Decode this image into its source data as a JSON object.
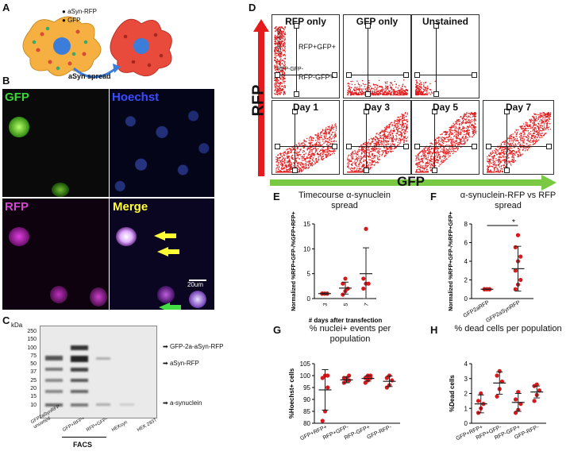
{
  "panels": {
    "A": "A",
    "B": "B",
    "C": "C",
    "D": "D",
    "E": "E",
    "F": "F",
    "G": "G",
    "H": "H"
  },
  "panelA": {
    "legend_rfp": "aSyn-RFP",
    "legend_gfp": "GFP",
    "arrow_label": "aSyn spread"
  },
  "panelB": {
    "gfp": "GFP",
    "hoechst": "Hoechst",
    "rfp": "RFP",
    "merge": "Merge",
    "scale": "20um"
  },
  "panelC": {
    "unit": "kDa",
    "markers": [
      "250",
      "150",
      "100",
      "75",
      "50",
      "37",
      "25",
      "20",
      "15",
      "10"
    ],
    "lanes": [
      "GFP2aSynRFP unsorted",
      "GFP+RFP+",
      "RFP+GFP-",
      "HEKsyn",
      "HEK 293T"
    ],
    "facs": "FACS",
    "bands": [
      "GFP-2a-aSyn-RFP",
      "aSyn-RFP",
      "a-synuclein"
    ]
  },
  "panelD": {
    "top": [
      "RFP only",
      "GFP only",
      "Unstained"
    ],
    "bottom": [
      "Day 1",
      "Day 3",
      "Day 5",
      "Day 7"
    ],
    "quadrants": {
      "ul": "RFP+GFP-",
      "ur": "RFP+GFP+",
      "ll": "RFP-GFP-",
      "lr": "RFP-GFP+"
    },
    "yaxis": "RFP",
    "xaxis": "GFP",
    "colors": {
      "red": "#e41a1c",
      "green": "#7ac943"
    }
  },
  "chart_data": [
    {
      "id": "E",
      "type": "scatter",
      "title": "Timecourse α-synuclein spread",
      "ylabel": "Normalized %RFP+GFP-/%GFP+RFP+",
      "xlabel": "# days after transfection",
      "categories": [
        "3",
        "5",
        "7"
      ],
      "ylim": [
        0,
        15
      ],
      "yticks": [
        0,
        5,
        10,
        15
      ],
      "points": [
        [
          1,
          1,
          1,
          1,
          1,
          1
        ],
        [
          0.8,
          1.5,
          2,
          3,
          4
        ],
        [
          2,
          3,
          3,
          4,
          14
        ]
      ],
      "mean": [
        1,
        2.1,
        5
      ],
      "sd": [
        0.1,
        1.2,
        5.2
      ]
    },
    {
      "id": "F",
      "type": "scatter",
      "title": "α-synuclein-RFP vs RFP spread",
      "ylabel": "Normalized %RFP+GFP-/%RFP+GFP+",
      "categories": [
        "GFP2aRFP",
        "GFP2aSynRFP"
      ],
      "ylim": [
        0,
        8
      ],
      "yticks": [
        0,
        2,
        4,
        6,
        8
      ],
      "points": [
        [
          1,
          1,
          1,
          1,
          1,
          1,
          1
        ],
        [
          1,
          1.5,
          2,
          3,
          4,
          4.5,
          5.5,
          6.8
        ]
      ],
      "mean": [
        1,
        3.2
      ],
      "sd": [
        0,
        2.4
      ],
      "significance": "*"
    },
    {
      "id": "G",
      "type": "scatter",
      "title": "% nuclei+ events per population",
      "ylabel": "%Hoechst+ cells",
      "categories": [
        "GFP+RFP+",
        "RFP+GFP-",
        "RFP-GFP+",
        "GFP-RFP-"
      ],
      "ylim": [
        80,
        105
      ],
      "yticks": [
        80,
        85,
        90,
        95,
        100,
        105
      ],
      "points": [
        [
          81,
          85,
          95,
          99,
          100,
          100
        ],
        [
          97,
          98,
          98,
          99,
          99,
          100
        ],
        [
          97,
          98,
          99,
          99,
          100,
          100
        ],
        [
          95,
          96,
          98,
          99,
          100
        ]
      ],
      "mean": [
        94,
        98.2,
        98.8,
        97.6
      ],
      "sd": [
        8.5,
        1.2,
        1.1,
        2.2
      ]
    },
    {
      "id": "H",
      "type": "scatter",
      "title": "% dead cells per population",
      "ylabel": "%Dead cells",
      "categories": [
        "GFP+RFP+",
        "RFP+GFP-",
        "RFP-GFP+",
        "GFP-RFP-"
      ],
      "ylim": [
        0,
        4
      ],
      "yticks": [
        0,
        1,
        2,
        3,
        4
      ],
      "points": [
        [
          0.7,
          1,
          1.3,
          1.5,
          2
        ],
        [
          1.8,
          2.3,
          2.8,
          3.2,
          3.5
        ],
        [
          0.7,
          0.9,
          1.3,
          1.6,
          2.1
        ],
        [
          1.5,
          1.9,
          2.2,
          2.5,
          2.6
        ]
      ],
      "mean": [
        1.3,
        2.7,
        1.4,
        2.1
      ],
      "sd": [
        0.6,
        0.75,
        0.6,
        0.4
      ]
    }
  ]
}
